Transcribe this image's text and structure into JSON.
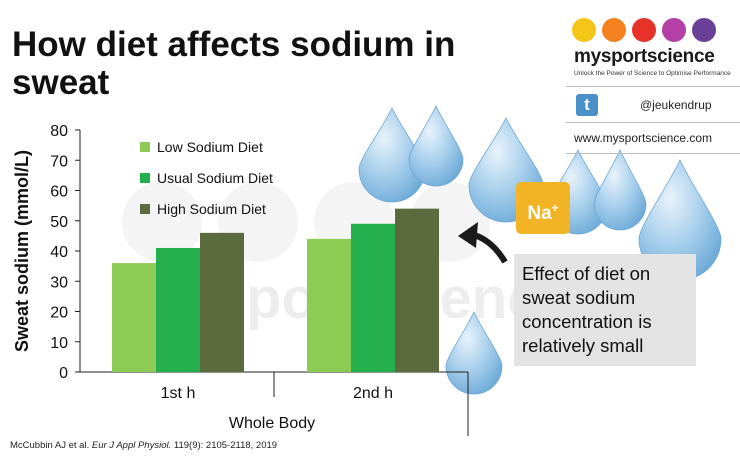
{
  "title": "How diet affects sodium in sweat",
  "chart_data": {
    "type": "bar",
    "title": "How diet affects sodium in sweat",
    "ylabel": "Sweat sodium (mmol/L)",
    "xlabel": "Whole Body",
    "ylim": [
      0,
      80
    ],
    "yticks": [
      0,
      10,
      20,
      30,
      40,
      50,
      60,
      70,
      80
    ],
    "categories": [
      "1st h",
      "2nd h"
    ],
    "series": [
      {
        "name": "Low Sodium Diet",
        "values": [
          36,
          44
        ],
        "color": "#8ccc55"
      },
      {
        "name": "Usual Sodium Diet",
        "values": [
          41,
          49
        ],
        "color": "#24ae4c"
      },
      {
        "name": "High Sodium Diet",
        "values": [
          46,
          54
        ],
        "color": "#5a6b3e"
      }
    ],
    "legend_position": "top-left",
    "grid": false
  },
  "watermark": "mysportscience",
  "brand": {
    "name": "mysportscience",
    "tagline": "Unlock the Power of Science to Optimise Performance",
    "twitter_handle": "@jeukendrup",
    "website": "www.mysportscience.com",
    "dot_colors": [
      "#f5c518",
      "#f58220",
      "#e63329",
      "#b33fa7",
      "#6a3f98"
    ]
  },
  "badge": {
    "text": "Na",
    "superscript": "+"
  },
  "annotation": "Effect of diet on sweat sodium concentration is relatively small",
  "citation": {
    "authors": "McCubbin AJ et al. ",
    "journal": "Eur J Appl Physiol.",
    "details": " 119(9): 2105-2118, 2019"
  }
}
